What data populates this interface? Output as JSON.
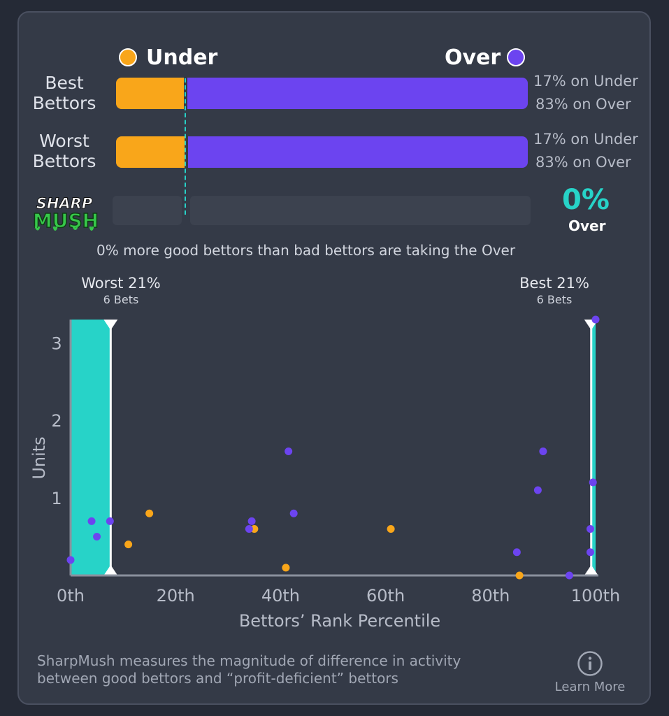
{
  "legend": {
    "under_label": "Under",
    "over_label": "Over",
    "under_color": "#f9a61a",
    "over_color": "#6c44f0"
  },
  "rows": [
    {
      "label_line1": "Best",
      "label_line2": "Bettors",
      "under_pct": 17,
      "over_pct": 83,
      "under_text": "17% on Under",
      "over_text": "83% on Over"
    },
    {
      "label_line1": "Worst",
      "label_line2": "Bettors",
      "under_pct": 17,
      "over_pct": 83,
      "under_text": "17% on Under",
      "over_text": "83% on Over"
    }
  ],
  "sharpmush": {
    "logo_line1": "SHARP",
    "logo_line2": "MUSH",
    "value": "0%",
    "side": "Over",
    "caption": "0% more good bettors than bad bettors are taking the Over",
    "accent_color": "#27d3c8"
  },
  "bands": {
    "worst_title": "Worst 21%",
    "worst_sub": "6 Bets",
    "best_title": "Best 21%",
    "best_sub": "6 Bets"
  },
  "chart_data": {
    "type": "scatter",
    "xlabel": "Bettors’ Rank Percentile",
    "ylabel": "Units",
    "xlim": [
      0,
      100
    ],
    "ylim": [
      0,
      3.3
    ],
    "x_ticks": [
      0,
      20,
      40,
      60,
      80,
      100
    ],
    "x_tick_labels": [
      "0th",
      "20th",
      "40th",
      "60th",
      "80th",
      "100th"
    ],
    "y_ticks": [
      1,
      2,
      3
    ],
    "y_tick_labels": [
      "1",
      "2",
      "3"
    ],
    "grid": false,
    "highlight_bands": [
      {
        "name": "Worst 21%",
        "x_start": 0,
        "x_end": 7.5
      },
      {
        "name": "Best 21%",
        "x_start": 99.3,
        "x_end": 100
      }
    ],
    "series": [
      {
        "name": "Under",
        "color": "#f9a61a",
        "points": [
          {
            "x": 11,
            "y": 0.4
          },
          {
            "x": 15,
            "y": 0.8
          },
          {
            "x": 35,
            "y": 0.6
          },
          {
            "x": 41,
            "y": 0.1
          },
          {
            "x": 61,
            "y": 0.6
          },
          {
            "x": 85.5,
            "y": 0.0
          }
        ]
      },
      {
        "name": "Over",
        "color": "#6c44f0",
        "points": [
          {
            "x": 0,
            "y": 0.2
          },
          {
            "x": 4,
            "y": 0.7
          },
          {
            "x": 5,
            "y": 0.5
          },
          {
            "x": 7.5,
            "y": 0.7
          },
          {
            "x": 34,
            "y": 0.6
          },
          {
            "x": 34.5,
            "y": 0.7
          },
          {
            "x": 41.5,
            "y": 1.6
          },
          {
            "x": 42.5,
            "y": 0.8
          },
          {
            "x": 85,
            "y": 0.3
          },
          {
            "x": 89,
            "y": 1.1
          },
          {
            "x": 90,
            "y": 1.6
          },
          {
            "x": 95,
            "y": 0.0
          },
          {
            "x": 99,
            "y": 0.6
          },
          {
            "x": 99,
            "y": 0.3
          },
          {
            "x": 99.5,
            "y": 1.2
          },
          {
            "x": 100,
            "y": 3.3
          }
        ]
      }
    ]
  },
  "footer": {
    "line1": "SharpMush measures the magnitude of difference in activity",
    "line2": "between good bettors and “profit-deficient” bettors",
    "learn_more": "Learn More"
  }
}
